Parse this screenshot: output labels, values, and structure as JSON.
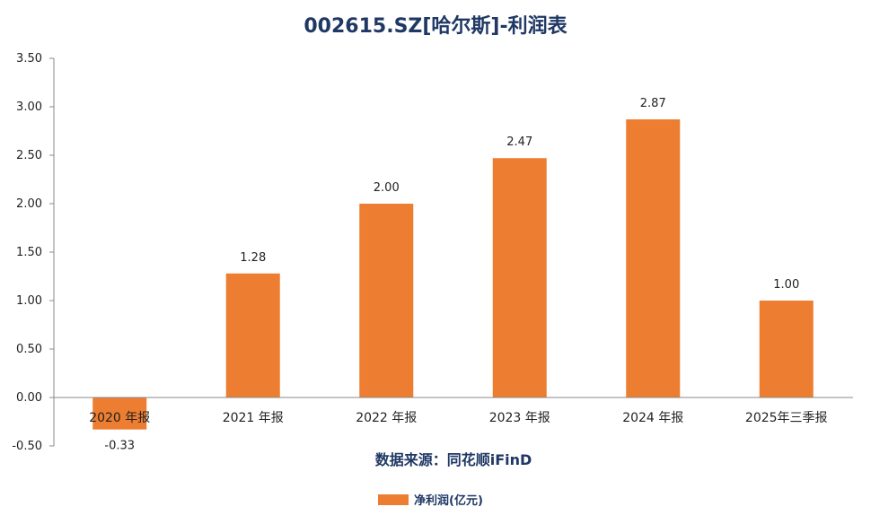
{
  "chart_data": {
    "type": "bar",
    "title": "002615.SZ[哈尔斯]-利润表",
    "categories": [
      "2020 年报",
      "2021 年报",
      "2022 年报",
      "2023 年报",
      "2024 年报",
      "2025年三季报"
    ],
    "series": [
      {
        "name": "净利润(亿元)",
        "color": "#ED7D31",
        "values": [
          -0.33,
          1.28,
          2.0,
          2.47,
          2.87,
          1.0
        ],
        "value_labels": [
          "-0.33",
          "1.28",
          "2.00",
          "2.47",
          "2.87",
          "1.00"
        ]
      }
    ],
    "ylim": [
      -0.5,
      3.5
    ],
    "yticks": [
      3.5,
      3.0,
      2.5,
      2.0,
      1.5,
      1.0,
      0.5,
      0.0,
      -0.5
    ],
    "ytick_labels": [
      "3.50",
      "3.00",
      "2.50",
      "2.00",
      "1.50",
      "1.00",
      "0.50",
      "0.00",
      "-0.50"
    ],
    "grid": false,
    "legend_position": "bottom-center",
    "source_note": "数据来源：同花顺iFinD"
  }
}
